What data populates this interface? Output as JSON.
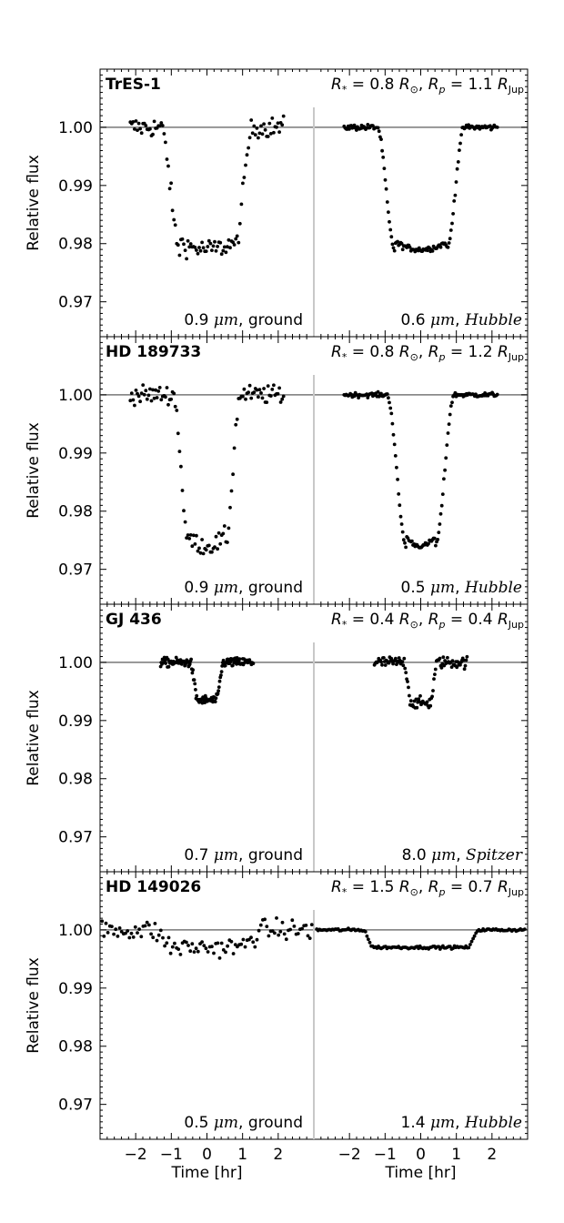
{
  "colors": {
    "background": "#ffffff",
    "axes": "#000000",
    "points": "#000000",
    "baseline": "#777777",
    "divider": "#c8c8c8"
  },
  "chart_data": {
    "type": "scatter",
    "ylabel": "Relative flux",
    "xlabel": "Time [hr]",
    "ylim": [
      0.964,
      1.01
    ],
    "yticks": [
      1.0,
      0.99,
      0.98,
      0.97
    ],
    "ytick_labels": [
      "1.00",
      "0.99",
      "0.98",
      "0.97"
    ],
    "xlim": [
      -3,
      3
    ],
    "xticks": [
      -2,
      -1,
      0,
      1,
      2
    ],
    "xtick_labels": [
      "−2",
      "−1",
      "0",
      "1",
      "2"
    ],
    "grid": false,
    "panels": [
      {
        "star": "TrES-1",
        "params": {
          "rstar": "0.8",
          "rp": "1.1"
        },
        "left": {
          "label": "0.9 μm, ground",
          "depth": 0.021,
          "duration": 2.6,
          "ingress": 0.55,
          "noise": 0.0009,
          "flat": false
        },
        "right": {
          "label": "0.6 μm, Hubble",
          "depth": 0.021,
          "duration": 2.45,
          "ingress": 0.5,
          "noise": 0.00025,
          "flat": false
        }
      },
      {
        "star": "HD 189733",
        "params": {
          "rstar": "0.8",
          "rp": "1.2"
        },
        "left": {
          "label": "0.9 μm, ground",
          "depth": 0.026,
          "duration": 1.9,
          "ingress": 0.45,
          "noise": 0.0008,
          "flat": false
        },
        "right": {
          "label": "0.5 μm, Hubble",
          "depth": 0.026,
          "duration": 1.9,
          "ingress": 0.55,
          "noise": 0.0002,
          "flat": false
        }
      },
      {
        "star": "GJ 436",
        "params": {
          "rstar": "0.4",
          "rp": "0.4"
        },
        "left": {
          "label": "0.7 μm, ground",
          "depth": 0.0065,
          "duration": 0.95,
          "ingress": 0.22,
          "noise": 0.0004,
          "flat": true
        },
        "right": {
          "label": "8.0 μm, Spitzer",
          "depth": 0.007,
          "duration": 0.95,
          "ingress": 0.22,
          "noise": 0.0005,
          "flat": true
        }
      },
      {
        "star": "HD 149026",
        "params": {
          "rstar": "1.5",
          "rp": "0.7"
        },
        "left": {
          "label": "0.5 μm, ground",
          "depth": 0.003,
          "duration": 3.2,
          "ingress": 0.7,
          "noise": 0.0009,
          "flat": true
        },
        "right": {
          "label": "1.4 μm, Hubble",
          "depth": 0.003,
          "duration": 3.25,
          "ingress": 0.3,
          "noise": 0.00012,
          "flat": true
        }
      }
    ]
  }
}
